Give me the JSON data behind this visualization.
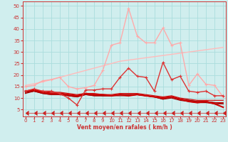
{
  "x": [
    0,
    1,
    2,
    3,
    4,
    5,
    6,
    7,
    8,
    9,
    10,
    11,
    12,
    13,
    14,
    15,
    16,
    17,
    18,
    19,
    20,
    21,
    22,
    23
  ],
  "series": [
    {
      "name": "line1_light_trend_upper",
      "y": [
        15.5,
        16.2,
        17.0,
        18.0,
        19.0,
        20.0,
        21.0,
        22.0,
        23.0,
        24.0,
        25.0,
        26.0,
        26.5,
        27.0,
        27.5,
        28.0,
        28.5,
        29.0,
        29.5,
        30.0,
        30.5,
        31.0,
        31.5,
        32.0
      ],
      "color": "#ffbbbb",
      "lw": 1.0,
      "marker": null,
      "zorder": 2
    },
    {
      "name": "line2_light_peaks",
      "y": [
        15.0,
        15.5,
        17.5,
        18.0,
        19.0,
        15.0,
        14.0,
        14.5,
        15.5,
        22.0,
        33.0,
        34.0,
        49.0,
        37.0,
        34.0,
        34.0,
        40.5,
        33.0,
        34.0,
        15.5,
        20.5,
        16.0,
        15.5,
        10.5
      ],
      "color": "#ffaaaa",
      "lw": 1.0,
      "marker": "+",
      "markersize": 3,
      "zorder": 3
    },
    {
      "name": "line3_medium_red",
      "y": [
        13.0,
        14.0,
        13.0,
        13.0,
        12.0,
        10.0,
        7.0,
        13.5,
        13.5,
        14.0,
        14.0,
        19.0,
        23.0,
        19.5,
        19.0,
        13.0,
        25.5,
        18.0,
        19.5,
        13.0,
        12.5,
        13.0,
        11.0,
        11.0
      ],
      "color": "#dd3333",
      "lw": 1.0,
      "marker": "+",
      "markersize": 3,
      "zorder": 4
    },
    {
      "name": "line4_flat_a",
      "y": [
        13.0,
        13.5,
        13.0,
        12.5,
        12.5,
        12.0,
        11.5,
        12.0,
        12.0,
        11.5,
        11.5,
        12.0,
        12.0,
        12.0,
        11.5,
        11.0,
        10.5,
        11.0,
        10.0,
        9.5,
        9.0,
        9.0,
        9.0,
        9.0
      ],
      "color": "#cc1111",
      "lw": 0.9,
      "marker": null,
      "zorder": 2
    },
    {
      "name": "line5_flat_b",
      "y": [
        12.5,
        13.0,
        12.5,
        12.0,
        12.0,
        11.5,
        11.0,
        11.5,
        11.5,
        11.0,
        11.0,
        11.5,
        11.5,
        11.5,
        11.0,
        10.5,
        10.0,
        10.5,
        9.5,
        9.0,
        8.5,
        8.5,
        8.0,
        8.0
      ],
      "color": "#bb0000",
      "lw": 0.9,
      "marker": null,
      "zorder": 2
    },
    {
      "name": "line6_flat_c",
      "y": [
        12.5,
        13.0,
        12.0,
        11.5,
        11.5,
        11.0,
        10.5,
        11.5,
        11.0,
        11.0,
        11.0,
        11.0,
        11.0,
        11.5,
        11.0,
        10.5,
        9.5,
        10.0,
        9.0,
        8.5,
        8.0,
        8.0,
        7.5,
        7.5
      ],
      "color": "#990000",
      "lw": 0.9,
      "marker": null,
      "zorder": 2
    },
    {
      "name": "line7_flat_d",
      "y": [
        12.0,
        13.0,
        12.0,
        11.5,
        11.5,
        11.0,
        10.5,
        11.5,
        11.0,
        11.0,
        11.0,
        11.5,
        11.5,
        11.5,
        11.0,
        10.5,
        9.5,
        10.5,
        9.5,
        9.0,
        8.5,
        8.5,
        8.0,
        7.5
      ],
      "color": "#aa0000",
      "lw": 0.9,
      "marker": null,
      "zorder": 2
    },
    {
      "name": "line8_descent_bold",
      "y": [
        13.0,
        13.5,
        12.5,
        12.0,
        12.0,
        11.5,
        11.0,
        12.0,
        11.5,
        11.5,
        11.0,
        11.5,
        11.0,
        11.5,
        11.0,
        10.5,
        10.0,
        10.5,
        9.5,
        8.5,
        8.0,
        8.5,
        7.5,
        6.0
      ],
      "color": "#cc0000",
      "lw": 1.5,
      "marker": null,
      "zorder": 3
    },
    {
      "name": "line9_arrows_bottom",
      "y": [
        3.5,
        3.5,
        3.5,
        3.5,
        3.5,
        3.5,
        3.5,
        3.5,
        3.5,
        3.5,
        3.5,
        3.5,
        3.5,
        3.5,
        3.5,
        3.5,
        3.5,
        3.5,
        3.5,
        3.5,
        3.5,
        3.5,
        3.5,
        3.5
      ],
      "color": "#cc2222",
      "lw": 0.5,
      "marker": 4,
      "markersize": 4,
      "zorder": 3
    }
  ],
  "xlim": [
    -0.3,
    23.3
  ],
  "ylim": [
    2,
    52
  ],
  "yticks": [
    5,
    10,
    15,
    20,
    25,
    30,
    35,
    40,
    45,
    50
  ],
  "xticks": [
    0,
    1,
    2,
    3,
    4,
    5,
    6,
    7,
    8,
    9,
    10,
    11,
    12,
    13,
    14,
    15,
    16,
    17,
    18,
    19,
    20,
    21,
    22,
    23
  ],
  "xlabel": "Vent moyen/en rafales ( km/h )",
  "background_color": "#d0eeee",
  "grid_color": "#aadddd",
  "axis_color": "#cc3333",
  "tick_color": "#cc3333",
  "xlabel_color": "#cc3333",
  "ytick_color": "#cc3333"
}
